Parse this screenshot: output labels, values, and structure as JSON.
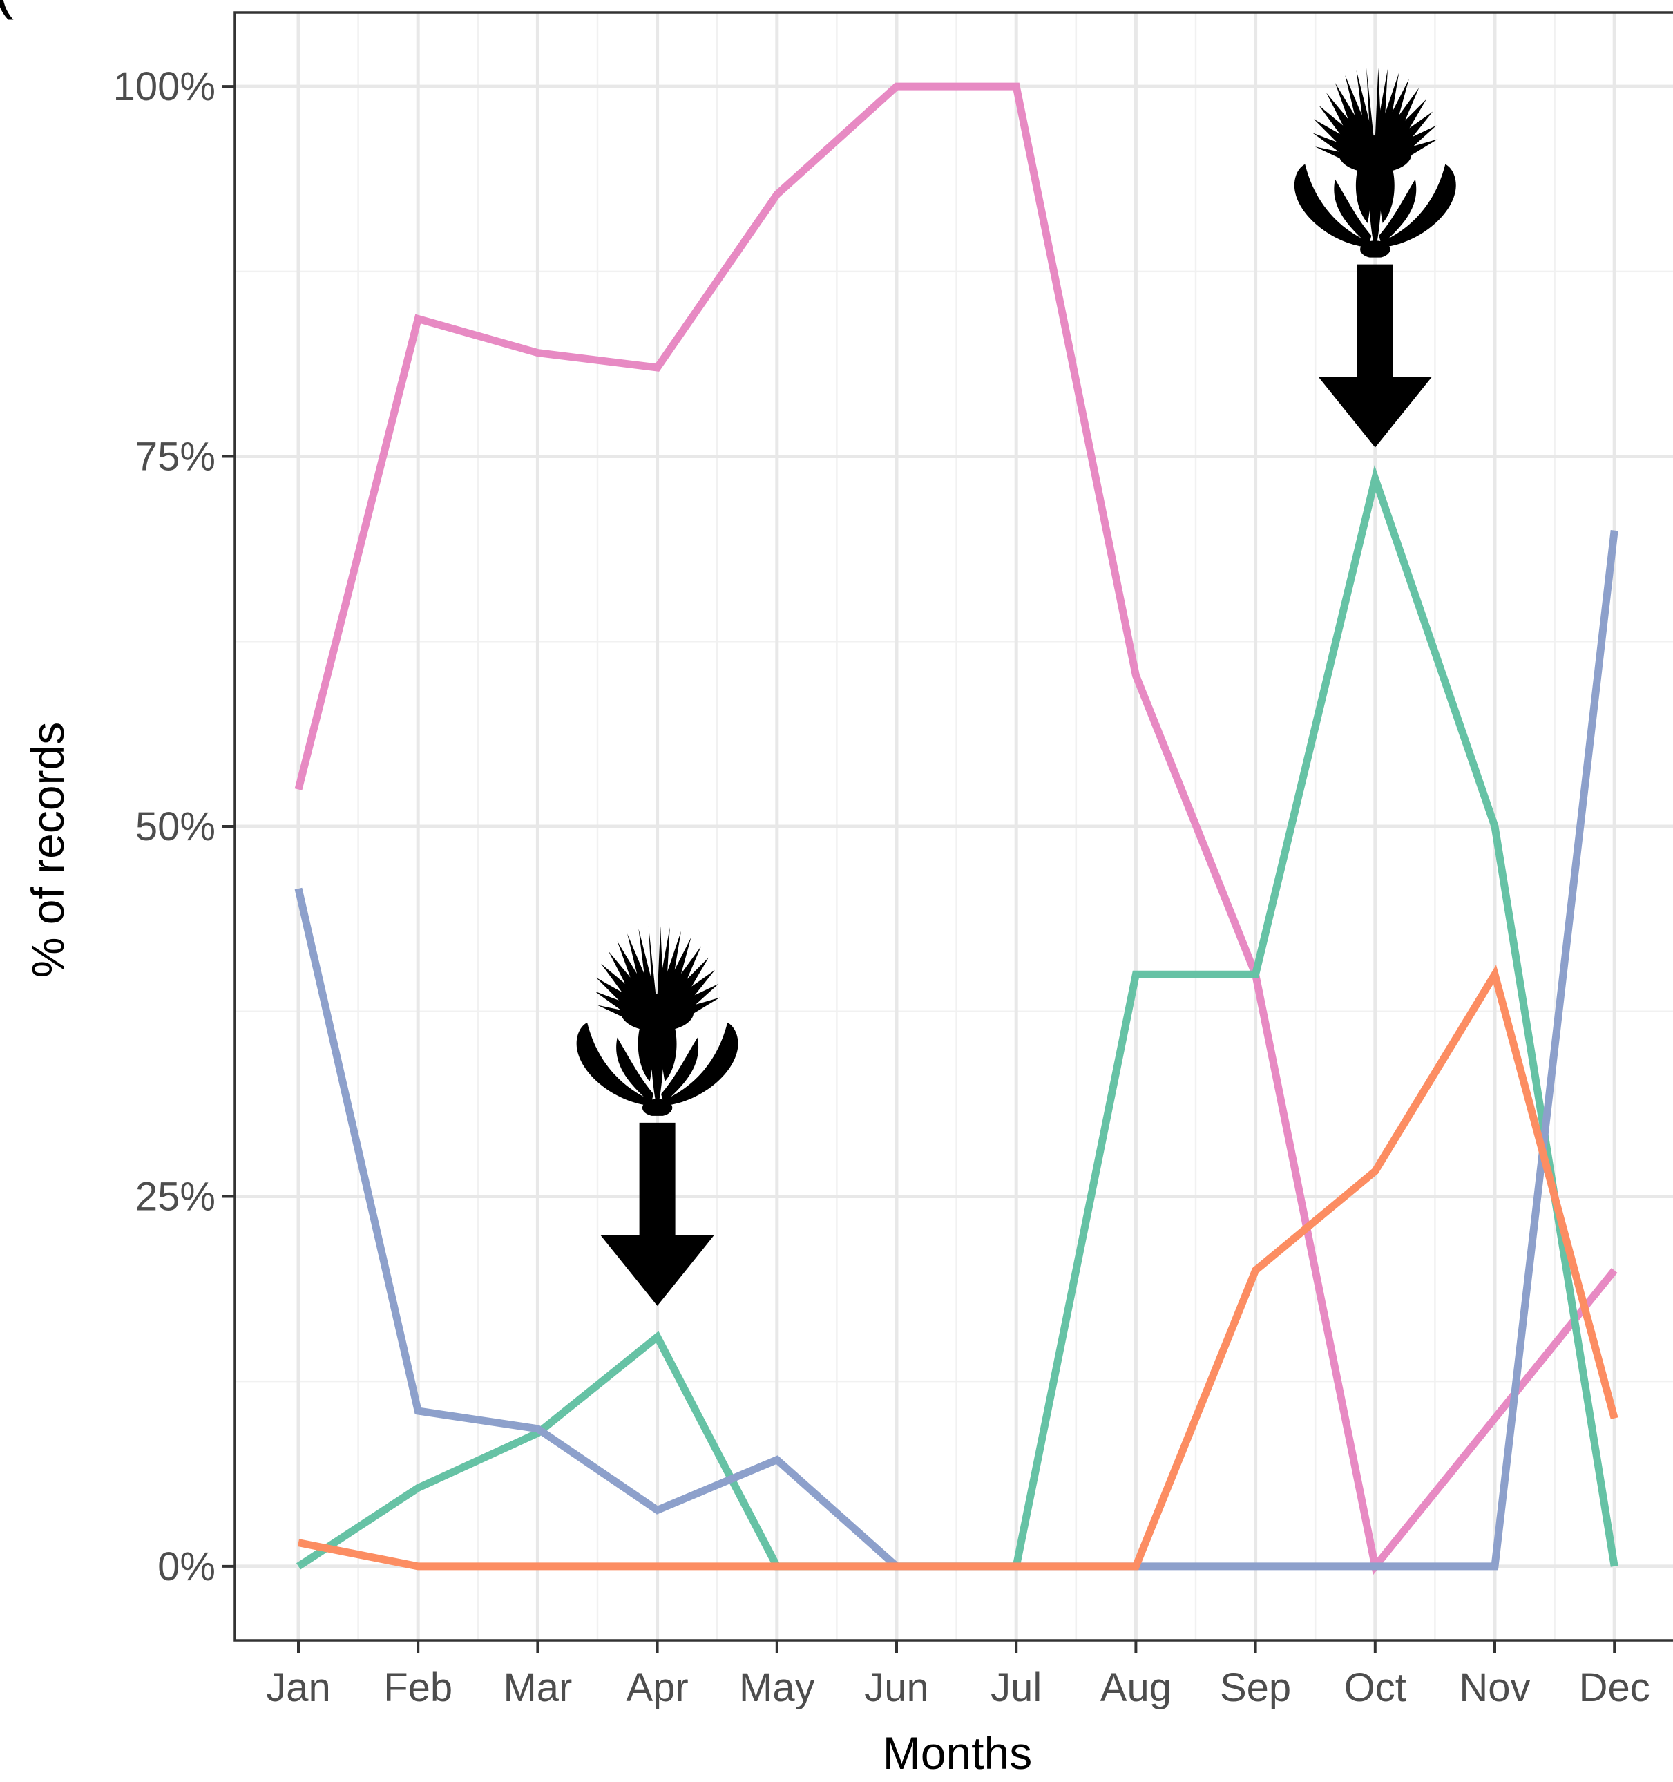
{
  "panel_label": "(",
  "chart_data": {
    "type": "line",
    "xlabel": "Months",
    "ylabel": "% of records",
    "categories": [
      "Jan",
      "Feb",
      "Mar",
      "Apr",
      "May",
      "Jun",
      "Jul",
      "Aug",
      "Sep",
      "Oct",
      "Nov",
      "Dec"
    ],
    "ylim": [
      -5,
      105
    ],
    "yticks": [
      0,
      25,
      50,
      75,
      100
    ],
    "ytick_labels": [
      "0%",
      "25%",
      "50%",
      "75%",
      "100%"
    ],
    "grid": true,
    "legend": "none",
    "series": [
      {
        "color": "#e78ac3",
        "values": [
          52.5,
          84.3,
          82,
          81,
          92.7,
          100,
          100,
          60.2,
          40,
          0,
          10,
          20
        ]
      },
      {
        "color": "#66c2a5",
        "values": [
          0,
          5.3,
          9,
          15.5,
          0,
          0,
          0,
          40,
          40,
          73.5,
          50,
          0
        ]
      },
      {
        "color": "#8da0cb",
        "values": [
          45.8,
          10.5,
          9.3,
          3.8,
          7.2,
          0,
          0,
          0,
          0,
          0,
          0,
          70
        ]
      },
      {
        "color": "#fc8d62",
        "values": [
          1.6,
          0,
          0,
          0,
          0,
          0,
          0,
          0,
          20,
          26.7,
          40,
          10
        ]
      }
    ],
    "annotations": [
      {
        "type": "flower-arrow",
        "month": "Apr",
        "points_to": 15.5
      },
      {
        "type": "flower-arrow",
        "month": "Oct",
        "points_to": 73.5
      }
    ]
  }
}
